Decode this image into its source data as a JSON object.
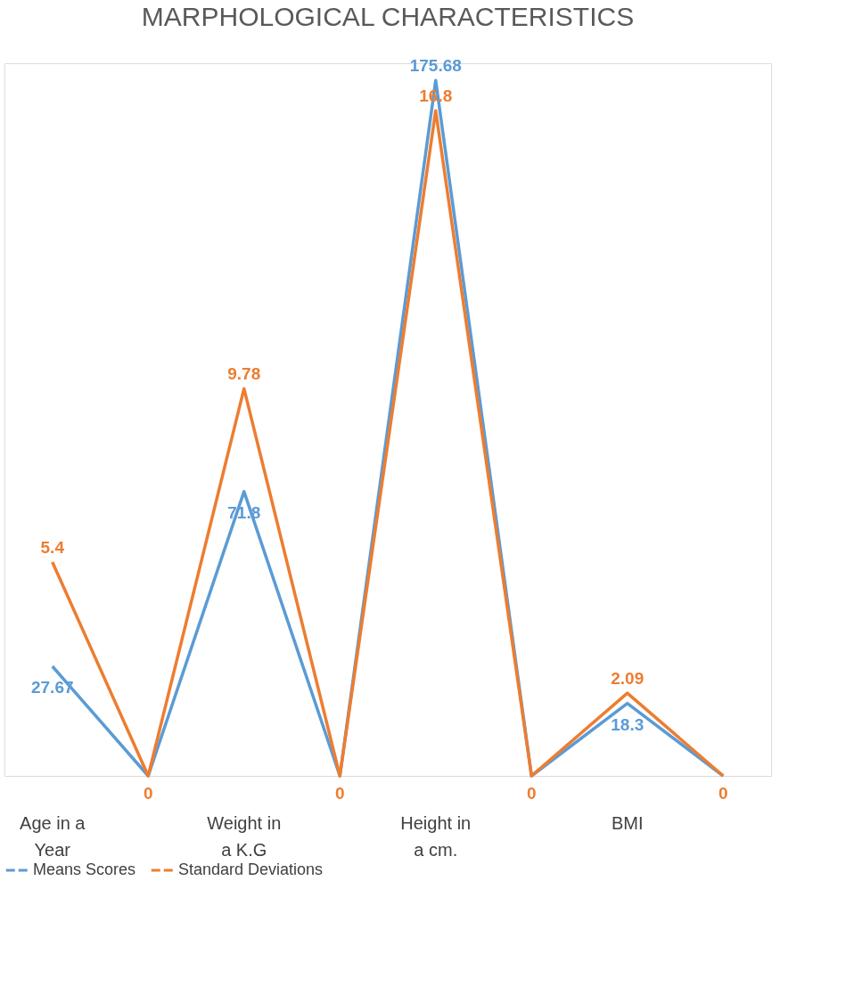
{
  "chart_data": {
    "type": "line",
    "title": "MARPHOLOGICAL CHARACTERISTICS",
    "categories": [
      "Age in a Year",
      null,
      "Weight in a K.G",
      null,
      "Height in a cm.",
      null,
      "BMI",
      null
    ],
    "series": [
      {
        "name": "Means Scores",
        "color": "#5b9bd5",
        "values": [
          27.67,
          0,
          71.8,
          0,
          175.68,
          0,
          18.3,
          0
        ],
        "value_labels": [
          "27.67",
          null,
          "71.8",
          null,
          "175.68",
          null,
          "18.3",
          null
        ]
      },
      {
        "name": "Standard Deviations",
        "color": "#ed7d31",
        "axis": "y2",
        "values": [
          5.4,
          0,
          9.78,
          0,
          16.8,
          0,
          2.09,
          0
        ],
        "value_labels": [
          "5.4",
          "0",
          "9.78",
          "0",
          "16.8",
          "0",
          "2.09",
          "0"
        ]
      }
    ],
    "tick_labels": "x",
    "legend": "bottom",
    "line_style": "solid"
  }
}
